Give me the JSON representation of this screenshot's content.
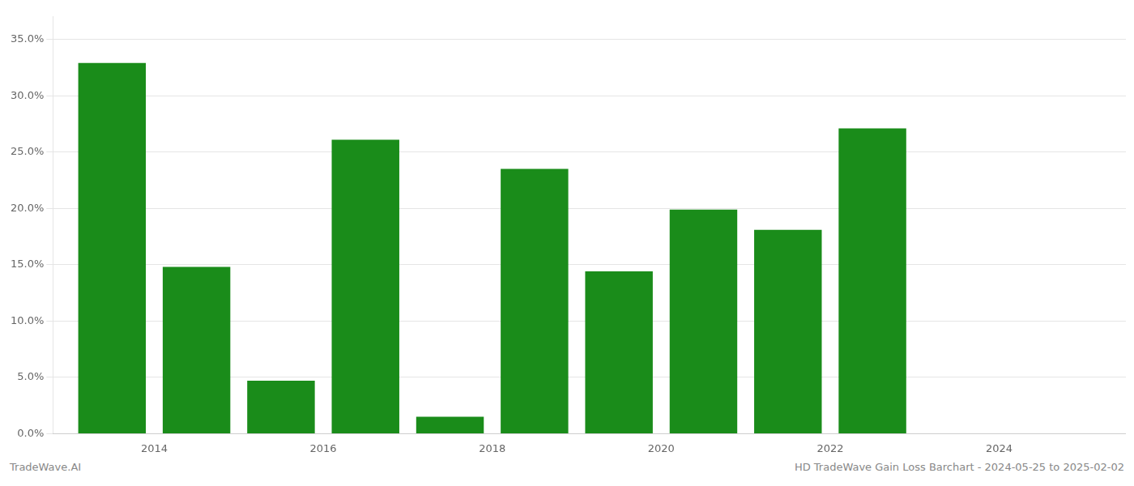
{
  "chart_data": {
    "type": "bar",
    "x": [
      2013.5,
      2014.5,
      2015.5,
      2016.5,
      2017.5,
      2018.5,
      2019.5,
      2020.5,
      2021.5,
      2022.5
    ],
    "values": [
      0.329,
      0.148,
      0.047,
      0.261,
      0.015,
      0.235,
      0.144,
      0.199,
      0.181,
      0.271
    ],
    "color": "#1a8c1a",
    "xlim": [
      2012.8,
      2025.5
    ],
    "xticks": [
      2014,
      2016,
      2018,
      2020,
      2022,
      2024
    ],
    "ylim": [
      0,
      0.37
    ],
    "yticks": [
      {
        "value": 0.0,
        "label": "0.0%"
      },
      {
        "value": 0.05,
        "label": "5.0%"
      },
      {
        "value": 0.1,
        "label": "10.0%"
      },
      {
        "value": 0.15,
        "label": "15.0%"
      },
      {
        "value": 0.2,
        "label": "20.0%"
      },
      {
        "value": 0.25,
        "label": "25.0%"
      },
      {
        "value": 0.3,
        "label": "30.0%"
      },
      {
        "value": 0.35,
        "label": "35.0%"
      }
    ],
    "grid": "y",
    "annotations": [
      "TradeWave.AI",
      "HD TradeWave Gain Loss Barchart - 2024-05-25 to 2025-02-02"
    ]
  }
}
